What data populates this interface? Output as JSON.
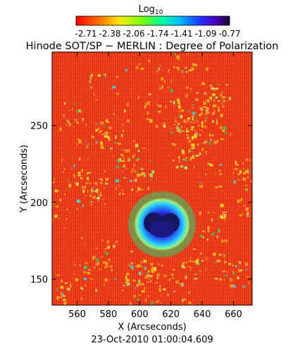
{
  "colorbar": {
    "label_main": "Log",
    "label_sub": "10",
    "ticks": [
      "-2.71",
      "-2.38",
      "-2.06",
      "-1.74",
      "-1.41",
      "-1.09",
      "-0.77"
    ],
    "colors": [
      "#ff0000",
      "#ff8000",
      "#ffff00",
      "#80ff00",
      "#00ff80",
      "#00c0ff",
      "#0040ff",
      "#4000c0",
      "#200040"
    ]
  },
  "title": "Hinode SOT/SP − MERLIN : Degree of Polarization",
  "x_axis": {
    "label": "X (Arcseconds)",
    "range": [
      544,
      672
    ],
    "ticks": [
      560,
      580,
      600,
      620,
      640,
      660
    ]
  },
  "y_axis": {
    "label": "Y (Arcseconds)",
    "range": [
      133,
      298
    ],
    "ticks": [
      150,
      200,
      250
    ]
  },
  "timestamp": "23-Oct-2010 01:00:04.609",
  "image": {
    "description_colors": {
      "background": "#e8361a",
      "speckle": "#ffd21e",
      "umbra": "#1a1a80",
      "penumbra_inner": "#2a3cf0",
      "penumbra_outer": "#35d9f0",
      "halo": "#9df07a"
    }
  }
}
